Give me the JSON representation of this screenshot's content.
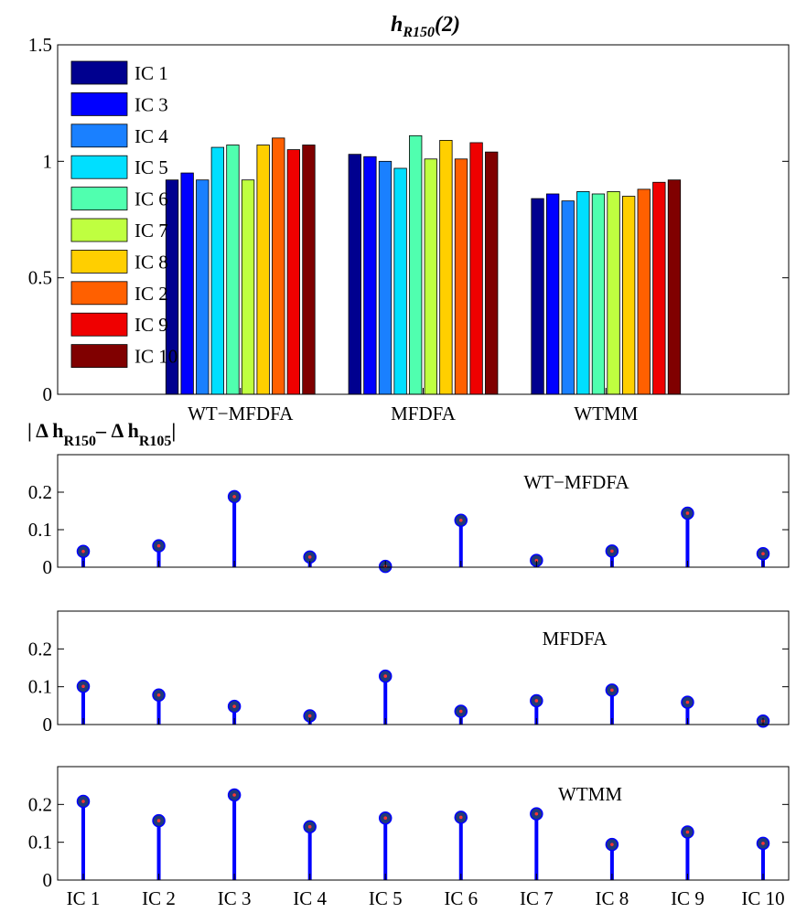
{
  "bar_chart": {
    "title": "h",
    "title_sub": "R150",
    "title_tail": "(2)",
    "ylim": [
      0,
      1.5
    ],
    "yticks": [
      "0",
      "0.5",
      "1",
      "1.5"
    ],
    "yticks_values": [
      0,
      0.5,
      1,
      1.5
    ]
  },
  "stem_ylabel": {
    "open": "| Δ h",
    "sub1": "R150",
    "mid": "– Δ h",
    "sub2": "R105",
    "close": "|"
  },
  "stem_yticks": [
    "0",
    "0.1",
    "0.2"
  ],
  "stem_yticks_values": [
    0,
    0.1,
    0.2
  ],
  "colors": {
    "stem": "#0000ff",
    "marker_fill": "#1f3a7a",
    "marker_dot": "#ff3333"
  },
  "chart_data": [
    {
      "type": "bar",
      "categories": [
        "WT−MFDFA",
        "MFDFA",
        "WTMM"
      ],
      "ylim": [
        0,
        1.5
      ],
      "legend_position": "top-left",
      "series": [
        {
          "name": "IC 1",
          "color": "#00008f",
          "values": [
            0.92,
            1.03,
            0.84
          ]
        },
        {
          "name": "IC 3",
          "color": "#0000ff",
          "values": [
            0.95,
            1.02,
            0.86
          ]
        },
        {
          "name": "IC 4",
          "color": "#1a80ff",
          "values": [
            0.92,
            1.0,
            0.83
          ]
        },
        {
          "name": "IC 5",
          "color": "#00dfff",
          "values": [
            1.06,
            0.97,
            0.87
          ]
        },
        {
          "name": "IC 6",
          "color": "#50ffaf",
          "values": [
            1.07,
            1.11,
            0.86
          ]
        },
        {
          "name": "IC 7",
          "color": "#bfff40",
          "values": [
            0.92,
            1.01,
            0.87
          ]
        },
        {
          "name": "IC 8",
          "color": "#ffcf00",
          "values": [
            1.07,
            1.09,
            0.85
          ]
        },
        {
          "name": "IC 2",
          "color": "#ff6000",
          "values": [
            1.1,
            1.01,
            0.88
          ]
        },
        {
          "name": "IC 9",
          "color": "#ef0000",
          "values": [
            1.05,
            1.08,
            0.91
          ]
        },
        {
          "name": "IC 10",
          "color": "#800000",
          "values": [
            1.07,
            1.04,
            0.92
          ]
        }
      ]
    },
    {
      "type": "stem",
      "title": "WT−MFDFA",
      "categories": [
        "IC 1",
        "IC 2",
        "IC 3",
        "IC 4",
        "IC 5",
        "IC 6",
        "IC 7",
        "IC 8",
        "IC 9",
        "IC 10"
      ],
      "values": [
        0.042,
        0.057,
        0.188,
        0.027,
        0.002,
        0.125,
        0.018,
        0.043,
        0.144,
        0.036
      ],
      "ylim": [
        0,
        0.3
      ]
    },
    {
      "type": "stem",
      "title": "MFDFA",
      "categories": [
        "IC 1",
        "IC 2",
        "IC 3",
        "IC 4",
        "IC 5",
        "IC 6",
        "IC 7",
        "IC 8",
        "IC 9",
        "IC 10"
      ],
      "values": [
        0.101,
        0.078,
        0.048,
        0.023,
        0.128,
        0.035,
        0.063,
        0.091,
        0.059,
        0.009
      ],
      "ylim": [
        0,
        0.3
      ]
    },
    {
      "type": "stem",
      "title": "WTMM",
      "categories": [
        "IC 1",
        "IC 2",
        "IC 3",
        "IC 4",
        "IC 5",
        "IC 6",
        "IC 7",
        "IC 8",
        "IC 9",
        "IC 10"
      ],
      "values": [
        0.208,
        0.157,
        0.225,
        0.141,
        0.164,
        0.166,
        0.175,
        0.094,
        0.127,
        0.097
      ],
      "ylim": [
        0,
        0.3
      ]
    }
  ]
}
